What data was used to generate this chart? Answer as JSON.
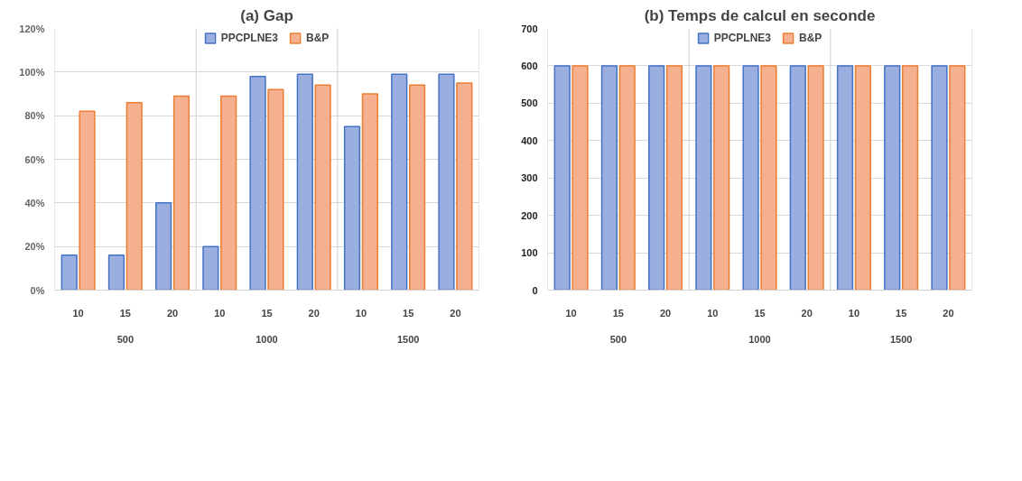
{
  "chart_data": [
    {
      "type": "bar",
      "title": "(a) Gap",
      "categories": [
        "10",
        "15",
        "20",
        "10",
        "15",
        "20",
        "10",
        "15",
        "20"
      ],
      "annotations": [
        "500",
        "1000",
        "1500"
      ],
      "series": [
        {
          "name": "PPCPLNE3",
          "color": "#9aaee0",
          "values": [
            16,
            16,
            40,
            20,
            98,
            99,
            75,
            99,
            99
          ]
        },
        {
          "name": "B&P",
          "color": "#f5b08f",
          "values": [
            82,
            86,
            89,
            89,
            92,
            94,
            90,
            94,
            95
          ]
        }
      ],
      "ylim": [
        0,
        120
      ],
      "yticks": [
        {
          "value": 0,
          "label": "0%"
        },
        {
          "value": 20,
          "label": "20%"
        },
        {
          "value": 40,
          "label": "40%"
        },
        {
          "value": 60,
          "label": "60%"
        },
        {
          "value": 80,
          "label": "80%"
        },
        {
          "value": 100,
          "label": "100%"
        },
        {
          "value": 120,
          "label": "120%"
        }
      ],
      "grid": "y",
      "legend": "top"
    },
    {
      "type": "bar",
      "title": "(b) Temps de calcul en seconde",
      "categories": [
        "10",
        "15",
        "20",
        "10",
        "15",
        "20",
        "10",
        "15",
        "20"
      ],
      "annotations": [
        "500",
        "1000",
        "1500"
      ],
      "series": [
        {
          "name": "PPCPLNE3",
          "color": "#9aaee0",
          "values": [
            600,
            600,
            600,
            600,
            600,
            600,
            600,
            600,
            600
          ]
        },
        {
          "name": "B&P",
          "color": "#f5b08f",
          "values": [
            600,
            600,
            600,
            600,
            600,
            600,
            600,
            600,
            600
          ]
        }
      ],
      "ylim": [
        0,
        700
      ],
      "yticks": [
        0,
        100,
        200,
        300,
        400,
        500,
        600,
        700
      ],
      "grid": "y",
      "legend": "top"
    }
  ]
}
